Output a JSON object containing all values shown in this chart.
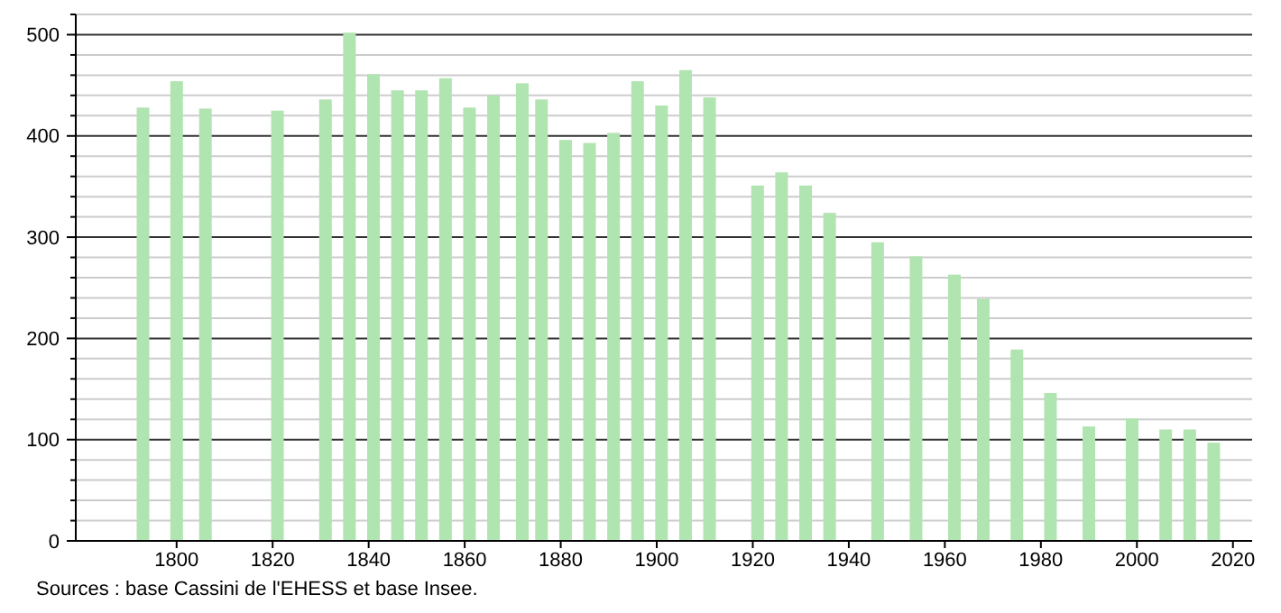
{
  "chart_data": {
    "type": "bar",
    "x": [
      1793,
      1800,
      1806,
      1821,
      1831,
      1836,
      1841,
      1846,
      1851,
      1856,
      1861,
      1866,
      1872,
      1876,
      1881,
      1886,
      1891,
      1896,
      1901,
      1906,
      1911,
      1921,
      1926,
      1931,
      1936,
      1946,
      1954,
      1962,
      1968,
      1975,
      1982,
      1990,
      1999,
      2006,
      2011,
      2016
    ],
    "values": [
      428,
      454,
      427,
      425,
      436,
      502,
      461,
      445,
      445,
      457,
      428,
      440,
      452,
      436,
      396,
      393,
      403,
      454,
      430,
      465,
      438,
      351,
      364,
      351,
      324,
      295,
      281,
      263,
      239,
      189,
      146,
      113,
      121,
      110,
      110,
      97
    ],
    "color": "#b0e4b0",
    "xlim": [
      1779,
      2024
    ],
    "xticks": [
      1800,
      1820,
      1840,
      1860,
      1880,
      1900,
      1920,
      1940,
      1960,
      1980,
      2000,
      2020
    ],
    "ylim": [
      0,
      520
    ],
    "yticks": [
      0,
      {
        "value": 20,
        "label": null
      },
      {
        "value": 40,
        "label": null
      },
      {
        "value": 60,
        "label": null
      },
      {
        "value": 80,
        "label": null
      },
      100,
      {
        "value": 120,
        "label": null
      },
      {
        "value": 140,
        "label": null
      },
      {
        "value": 160,
        "label": null
      },
      {
        "value": 180,
        "label": null
      },
      200,
      {
        "value": 220,
        "label": null
      },
      {
        "value": 240,
        "label": null
      },
      {
        "value": 260,
        "label": null
      },
      {
        "value": 280,
        "label": null
      },
      300,
      {
        "value": 320,
        "label": null
      },
      {
        "value": 340,
        "label": null
      },
      {
        "value": 360,
        "label": null
      },
      {
        "value": 380,
        "label": null
      },
      400,
      {
        "value": 420,
        "label": null
      },
      {
        "value": 440,
        "label": null
      },
      {
        "value": 460,
        "label": null
      },
      {
        "value": 480,
        "label": null
      },
      500,
      {
        "value": 520,
        "label": null
      }
    ],
    "grid": "y",
    "annotations": [
      "Sources : base Cassini de l'EHESS et base Insee."
    ]
  }
}
